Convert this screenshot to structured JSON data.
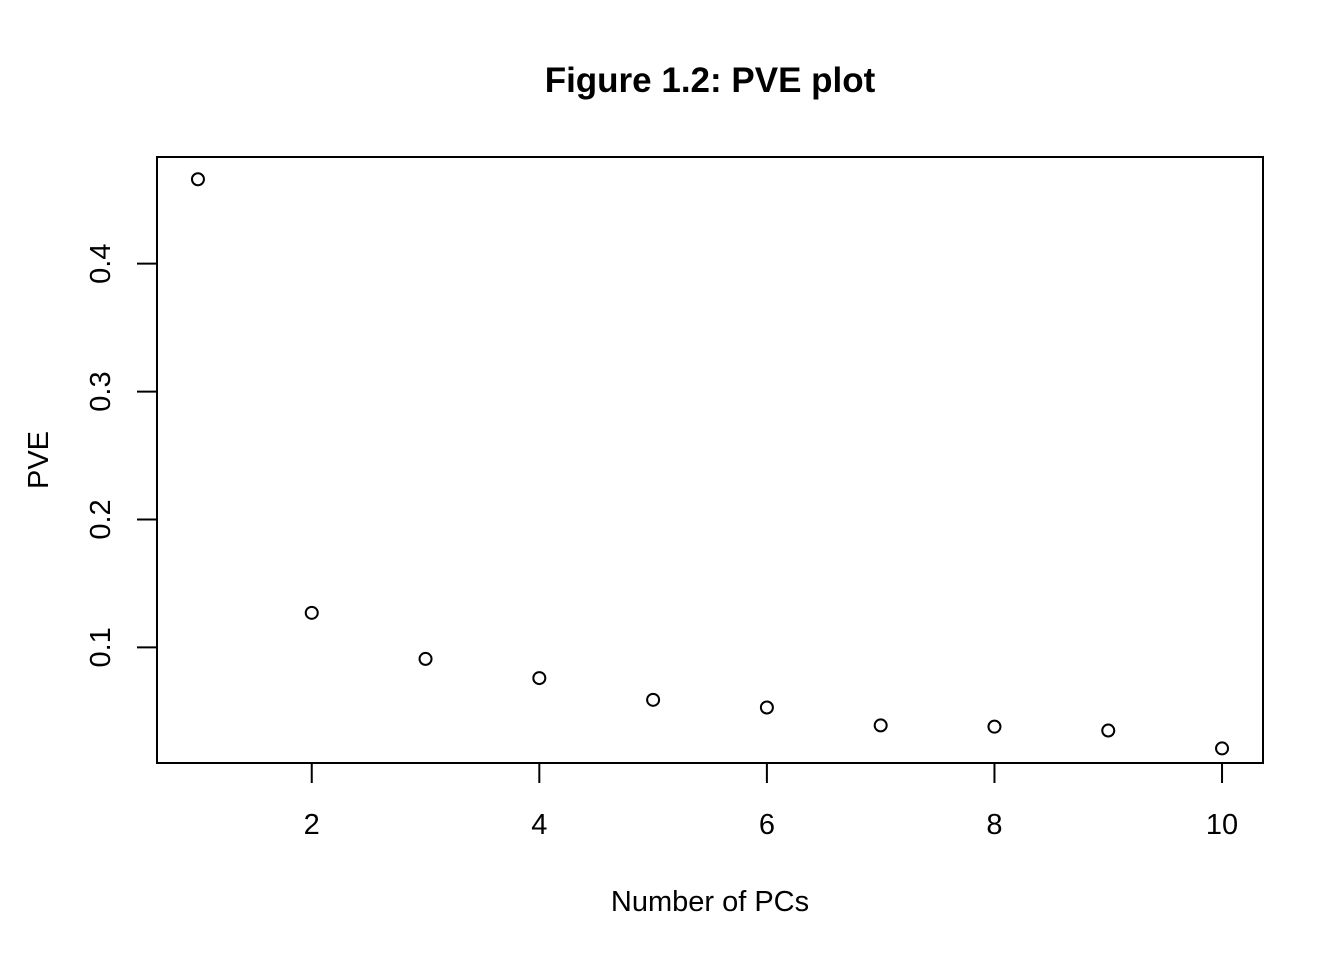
{
  "chart_data": {
    "type": "scatter",
    "title": "Figure 1.2: PVE plot",
    "xlabel": "Number of PCs",
    "ylabel": "PVE",
    "xlim": [
      0.64,
      10.36
    ],
    "ylim": [
      0.0096,
      0.4834
    ],
    "x_ticks": [
      2,
      4,
      6,
      8,
      10
    ],
    "x_tick_labels": [
      "2",
      "4",
      "6",
      "8",
      "10"
    ],
    "y_ticks": [
      0.1,
      0.2,
      0.3,
      0.4
    ],
    "y_tick_labels": [
      "0.1",
      "0.2",
      "0.3",
      "0.4"
    ],
    "grid": false,
    "legend": "none",
    "marker": "open-circle",
    "color": "#000000",
    "x": [
      1,
      2,
      3,
      4,
      5,
      6,
      7,
      8,
      9,
      10
    ],
    "y": [
      0.466,
      0.127,
      0.091,
      0.076,
      0.059,
      0.053,
      0.039,
      0.038,
      0.035,
      0.021
    ]
  }
}
